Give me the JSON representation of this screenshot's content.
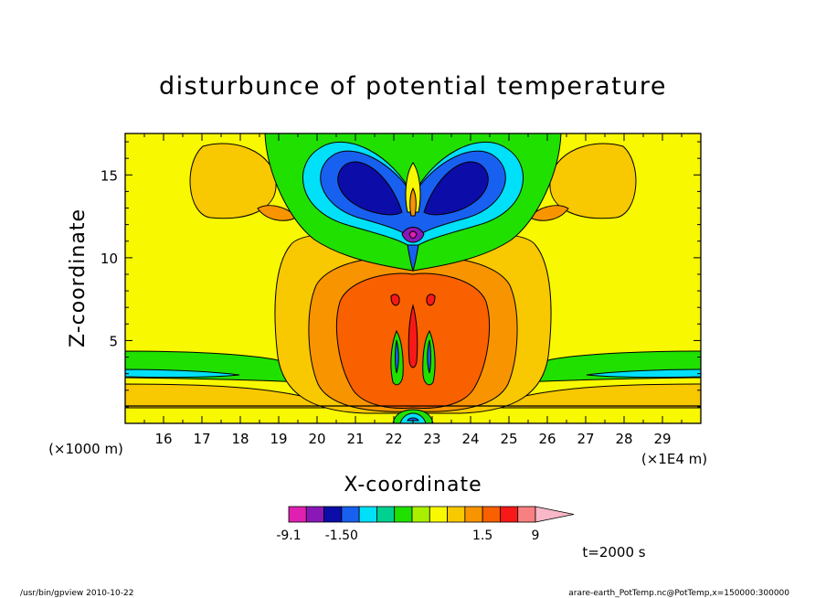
{
  "chart_data": {
    "type": "heatmap",
    "title": "disturbunce of potential temperature",
    "xlabel": "X-coordinate",
    "ylabel": "Z-coordinate",
    "x_unit_label": "(×1E4 m)",
    "y_unit_label": "(×1000 m)",
    "xlim": [
      15.0,
      30.0
    ],
    "ylim": [
      0.0,
      17.5
    ],
    "x_ticks": [
      "16",
      "17",
      "18",
      "19",
      "20",
      "21",
      "22",
      "23",
      "24",
      "25",
      "26",
      "27",
      "28",
      "29"
    ],
    "y_ticks": [
      "5",
      "10",
      "15"
    ],
    "x_tick_values": [
      16,
      17,
      18,
      19,
      20,
      21,
      22,
      23,
      24,
      25,
      26,
      27,
      28,
      29
    ],
    "y_tick_values": [
      5,
      10,
      15
    ],
    "colorbar": {
      "levels": [
        -9.1,
        -7.5,
        -4.5,
        -1.5,
        -1.0,
        -0.6,
        -0.3,
        0.0,
        0.3,
        0.6,
        1.0,
        1.5,
        4.5,
        7.5,
        9.0
      ],
      "labels": [
        "-9.1",
        "-1.50",
        "1.5",
        "9"
      ],
      "label_values": [
        -9.1,
        -1.5,
        1.5,
        9.0
      ],
      "colors": [
        "#e020b0",
        "#8a18b8",
        "#0c0ca8",
        "#1860f0",
        "#00e0f8",
        "#00d090",
        "#20e000",
        "#a8f000",
        "#f8f800",
        "#f8c800",
        "#f89400",
        "#f86000",
        "#f81818",
        "#f88080",
        "#f8b8c8"
      ],
      "extend": "max"
    },
    "time_label": "t=2000 s",
    "footer_left": "/usr/bin/gpview  2010-10-22",
    "footer_right": "arare-earth_PotTemp.nc@PotTemp,x=150000:300000"
  }
}
